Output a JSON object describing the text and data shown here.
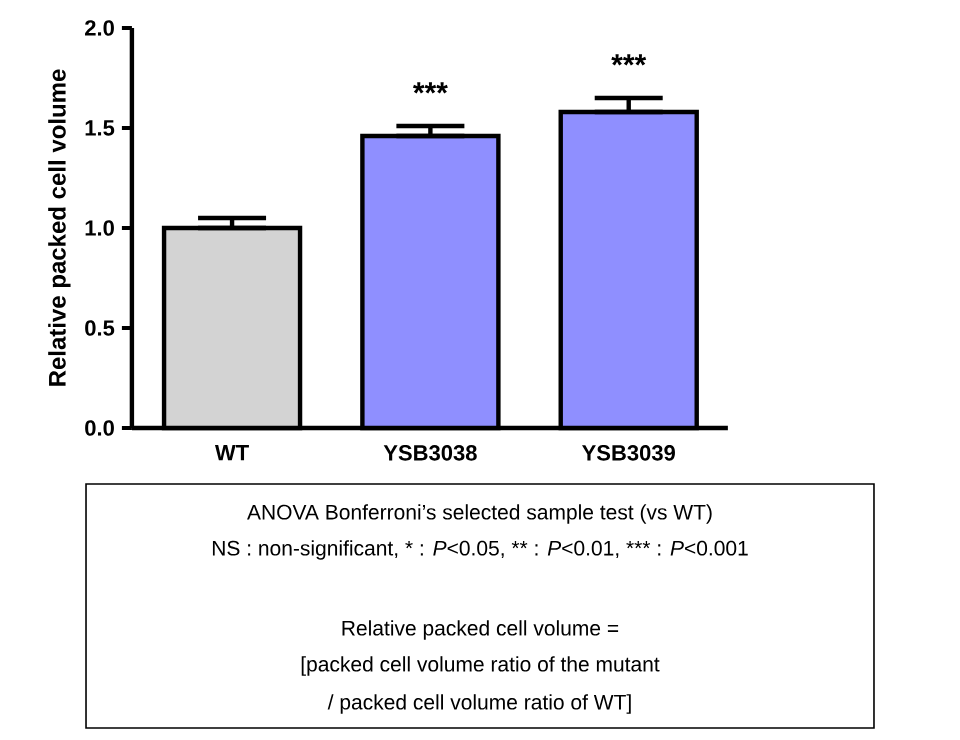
{
  "chart_data": {
    "type": "bar",
    "ylabel": "Relative packed cell volume",
    "categories": [
      "WT",
      "YSB3038",
      "YSB3039"
    ],
    "values": [
      1.0,
      1.46,
      1.58
    ],
    "colors": [
      "#d3d3d3",
      "#8f8fff",
      "#8f8fff"
    ],
    "errors": [
      [
        1.0,
        1.05
      ],
      [
        1.46,
        1.51
      ],
      [
        1.58,
        1.65
      ]
    ],
    "ylim": [
      0,
      2.0
    ],
    "yticks": [
      {
        "value": 0,
        "label": "0.0"
      },
      {
        "value": 0.5,
        "label": "0.5"
      },
      {
        "value": 1.0,
        "label": "1.0"
      },
      {
        "value": 1.5,
        "label": "1.5"
      },
      {
        "value": 2.0,
        "label": "2.0"
      }
    ],
    "grid": false,
    "annotations": [
      "***",
      "***",
      "ANOVA Bonferroni’s selected sample test (vs WT)",
      "NS : non-significant, * : *P*<0.05, ** : *P*<0.01, *** : *P*<0.001",
      "Relative packed cell volume =",
      "[packed cell volume ratio of the mutant",
      "/ packed cell volume ratio of WT]"
    ]
  }
}
